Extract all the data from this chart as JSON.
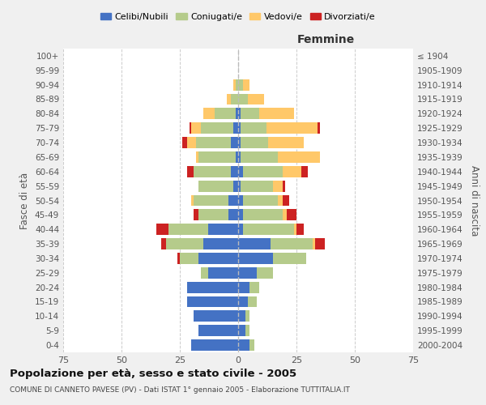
{
  "age_groups": [
    "0-4",
    "5-9",
    "10-14",
    "15-19",
    "20-24",
    "25-29",
    "30-34",
    "35-39",
    "40-44",
    "45-49",
    "50-54",
    "55-59",
    "60-64",
    "65-69",
    "70-74",
    "75-79",
    "80-84",
    "85-89",
    "90-94",
    "95-99",
    "100+"
  ],
  "birth_years": [
    "2000-2004",
    "1995-1999",
    "1990-1994",
    "1985-1989",
    "1980-1984",
    "1975-1979",
    "1970-1974",
    "1965-1969",
    "1960-1964",
    "1955-1959",
    "1950-1954",
    "1945-1949",
    "1940-1944",
    "1935-1939",
    "1930-1934",
    "1925-1929",
    "1920-1924",
    "1915-1919",
    "1910-1914",
    "1905-1909",
    "≤ 1904"
  ],
  "male": {
    "celibi": [
      20,
      17,
      19,
      22,
      22,
      13,
      17,
      15,
      13,
      4,
      4,
      2,
      3,
      1,
      3,
      2,
      1,
      0,
      0,
      0,
      0
    ],
    "coniugati": [
      0,
      0,
      0,
      0,
      0,
      3,
      8,
      16,
      17,
      13,
      15,
      15,
      16,
      16,
      15,
      14,
      9,
      3,
      1,
      0,
      0
    ],
    "vedovi": [
      0,
      0,
      0,
      0,
      0,
      0,
      0,
      0,
      0,
      0,
      1,
      0,
      0,
      1,
      4,
      4,
      5,
      2,
      1,
      0,
      0
    ],
    "divorziati": [
      0,
      0,
      0,
      0,
      0,
      0,
      1,
      2,
      5,
      2,
      0,
      0,
      3,
      0,
      2,
      1,
      0,
      0,
      0,
      0,
      0
    ]
  },
  "female": {
    "nubili": [
      5,
      3,
      3,
      4,
      5,
      8,
      15,
      14,
      2,
      2,
      2,
      1,
      2,
      1,
      1,
      1,
      1,
      0,
      0,
      0,
      0
    ],
    "coniugate": [
      2,
      2,
      2,
      4,
      4,
      7,
      14,
      18,
      22,
      17,
      15,
      14,
      17,
      16,
      12,
      11,
      8,
      4,
      2,
      0,
      0
    ],
    "vedove": [
      0,
      0,
      0,
      0,
      0,
      0,
      0,
      1,
      1,
      2,
      2,
      4,
      8,
      18,
      15,
      22,
      15,
      7,
      3,
      0,
      0
    ],
    "divorziate": [
      0,
      0,
      0,
      0,
      0,
      0,
      0,
      4,
      3,
      4,
      3,
      1,
      3,
      0,
      0,
      1,
      0,
      0,
      0,
      0,
      0
    ]
  },
  "colors": {
    "celibi": "#4472c4",
    "coniugati": "#b5cb8b",
    "vedovi": "#ffc869",
    "divorziati": "#cc2222"
  },
  "xlim": 75,
  "title": "Popolazione per età, sesso e stato civile - 2005",
  "subtitle": "COMUNE DI CANNETO PAVESE (PV) - Dati ISTAT 1° gennaio 2005 - Elaborazione TUTTITALIA.IT",
  "ylabel_left": "Fasce di età",
  "ylabel_right": "Anni di nascita",
  "xlabel_right": "Femmine",
  "legend_labels": [
    "Celibi/Nubili",
    "Coniugati/e",
    "Vedovi/e",
    "Divorziati/e"
  ],
  "bg_color": "#f0f0f0",
  "plot_bg": "#ffffff"
}
